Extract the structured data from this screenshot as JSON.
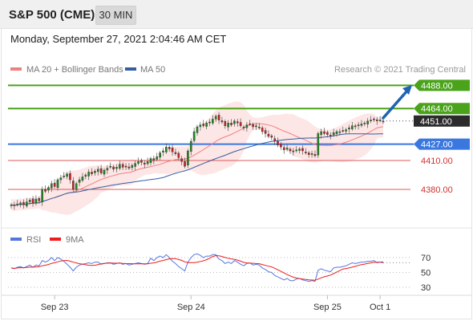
{
  "header": {
    "title": "S&P 500 (CME)",
    "timeframe": "30 MIN"
  },
  "datetime": "Monday, September 27, 2021 2:04:46 AM CET",
  "legend": {
    "bb_label": "MA 20 + Bollinger Bands",
    "ma50_label": "MA 50",
    "credit": "Research © 2021 Trading Central"
  },
  "colors": {
    "bull": "#1f8a1f",
    "bear": "#cc2222",
    "resistance": "#4aa31a",
    "support": "#e05a5a",
    "pivot": "#3a78e0",
    "ma20": "#f08080",
    "ma50": "#335fa0",
    "band": "#fde0e0",
    "rsi": "#5577dd",
    "rsi_ma": "#ee1c1c",
    "arrow": "#1f63b5"
  },
  "levels": [
    {
      "label": "4488.00",
      "value": 4488,
      "kind": "resistance"
    },
    {
      "label": "4464.00",
      "value": 4464,
      "kind": "resistance"
    },
    {
      "label": "4451.00",
      "value": 4451,
      "kind": "last"
    },
    {
      "label": "4427.00",
      "value": 4427,
      "kind": "pivot"
    },
    {
      "label": "4410.00",
      "value": 4410,
      "kind": "support"
    },
    {
      "label": "4380.00",
      "value": 4380,
      "kind": "support"
    }
  ],
  "rsi_panel": {
    "legend_rsi": "RSI",
    "legend_ma": "9MA",
    "ticks": [
      {
        "label": "70",
        "value": 70
      },
      {
        "label": "50",
        "value": 50
      },
      {
        "label": "30",
        "value": 30
      }
    ]
  },
  "x_axis": [
    {
      "label": "Sep 23",
      "index": 14
    },
    {
      "label": "Sep 24",
      "index": 58
    },
    {
      "label": "Sep 25",
      "index": 102
    },
    {
      "label": "Oct 1",
      "index": 119
    }
  ],
  "chart_data": {
    "type": "candlestick",
    "y_range": [
      4345,
      4505
    ],
    "x_range": [
      0,
      124
    ],
    "closes": [
      4364,
      4363,
      4365,
      4366,
      4364,
      4367,
      4369,
      4366,
      4370,
      4368,
      4380,
      4378,
      4382,
      4386,
      4383,
      4390,
      4392,
      4394,
      4396,
      4390,
      4380,
      4386,
      4390,
      4393,
      4395,
      4398,
      4396,
      4399,
      4401,
      4397,
      4400,
      4402,
      4404,
      4401,
      4403,
      4406,
      4403,
      4404,
      4402,
      4405,
      4407,
      4409,
      4408,
      4406,
      4409,
      4412,
      4410,
      4414,
      4418,
      4420,
      4424,
      4422,
      4419,
      4417,
      4413,
      4409,
      4404,
      4420,
      4430,
      4440,
      4445,
      4447,
      4446,
      4449,
      4450,
      4453,
      4456,
      4452,
      4450,
      4446,
      4449,
      4447,
      4451,
      4449,
      4446,
      4444,
      4447,
      4448,
      4445,
      4446,
      4444,
      4440,
      4438,
      4435,
      4434,
      4430,
      4426,
      4424,
      4421,
      4423,
      4420,
      4419,
      4421,
      4422,
      4420,
      4418,
      4416,
      4417,
      4415,
      4438,
      4440,
      4438,
      4437,
      4436,
      4439,
      4440,
      4440,
      4441,
      4442,
      4444,
      4446,
      4445,
      4447,
      4448,
      4449,
      4451,
      4452,
      4453,
      4451,
      4452,
      4451
    ],
    "rsi": [
      56,
      55,
      57,
      58,
      56,
      58,
      60,
      57,
      60,
      59,
      66,
      64,
      66,
      70,
      66,
      70,
      68,
      65,
      61,
      57,
      52,
      57,
      60,
      61,
      62,
      63,
      62,
      64,
      64,
      61,
      62,
      63,
      63,
      61,
      62,
      63,
      61,
      62,
      60,
      61,
      62,
      63,
      62,
      61,
      62,
      69,
      66,
      70,
      72,
      70,
      74,
      70,
      65,
      62,
      58,
      55,
      52,
      64,
      70,
      74,
      75,
      73,
      70,
      72,
      72,
      74,
      74,
      68,
      66,
      62,
      64,
      62,
      66,
      64,
      61,
      59,
      62,
      63,
      60,
      61,
      60,
      56,
      54,
      51,
      50,
      46,
      44,
      42,
      40,
      42,
      39,
      39,
      41,
      42,
      40,
      39,
      38,
      39,
      38,
      53,
      55,
      53,
      52,
      51,
      56,
      57,
      57,
      58,
      59,
      61,
      63,
      62,
      63,
      64,
      64,
      65,
      65,
      66,
      63,
      64,
      63
    ]
  }
}
